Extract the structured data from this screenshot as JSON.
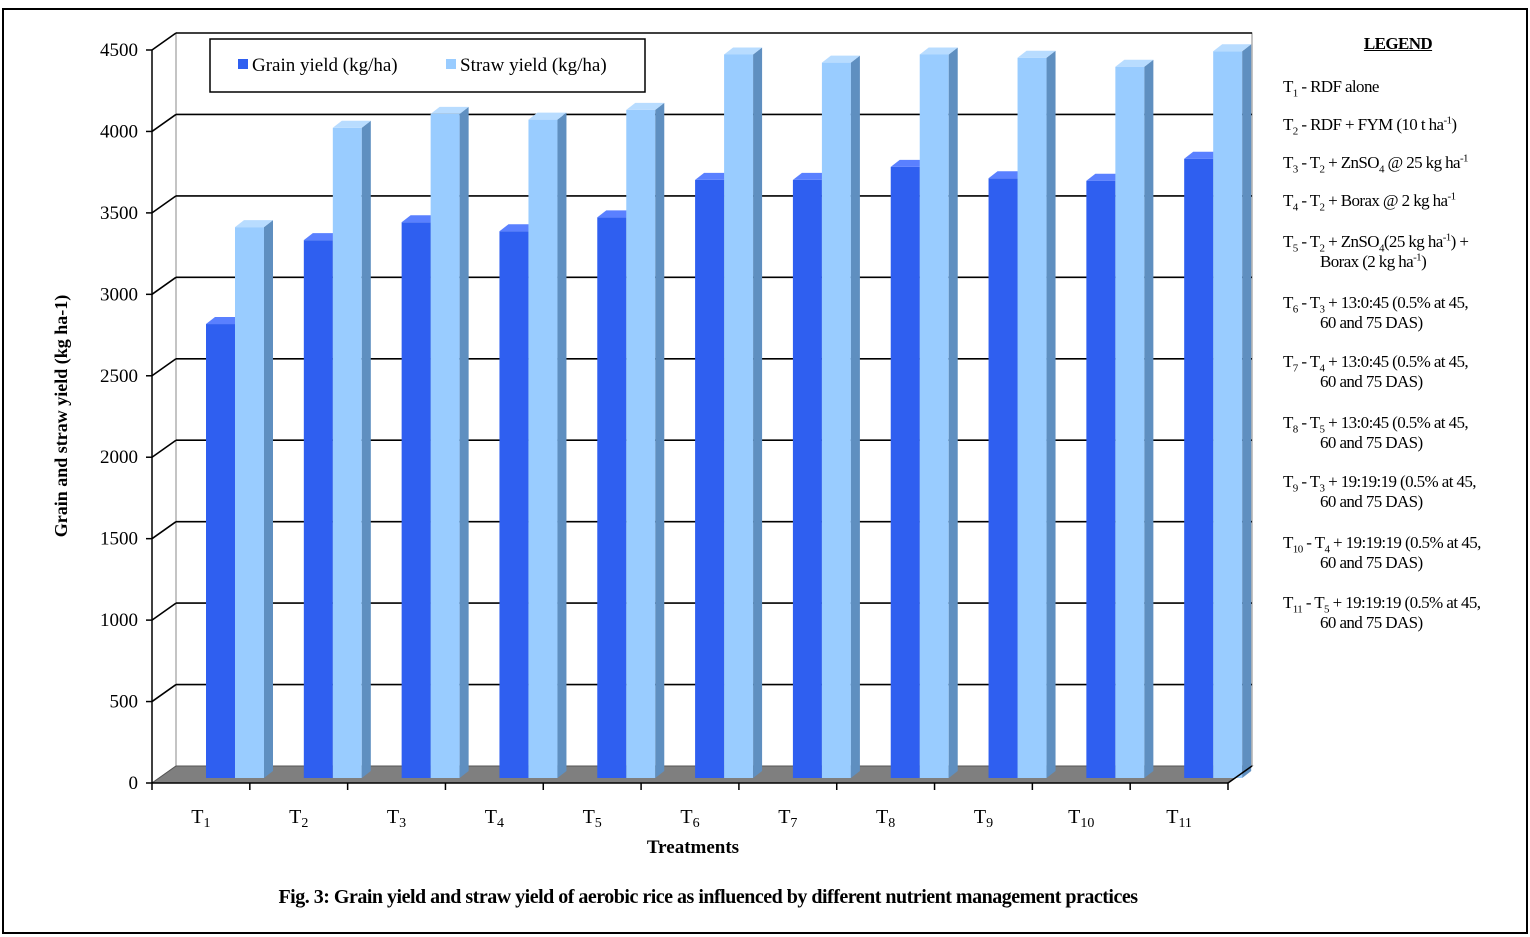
{
  "chart_data": {
    "type": "bar",
    "style": "3d-clustered-column",
    "categories": [
      "T1",
      "T2",
      "T3",
      "T4",
      "T5",
      "T6",
      "T7",
      "T8",
      "T9",
      "T10",
      "T11"
    ],
    "series": [
      {
        "name": "Grain yield (kg/ha)",
        "color": "#2f5ff0",
        "values": [
          2750,
          3265,
          3375,
          3320,
          3405,
          3635,
          3635,
          3715,
          3645,
          3630,
          3765
        ]
      },
      {
        "name": "Straw yield (kg/ha)",
        "color": "#99ccff",
        "values": [
          3345,
          3955,
          4040,
          4005,
          4065,
          4405,
          4355,
          4405,
          4385,
          4330,
          4425
        ]
      }
    ],
    "xlabel": "Treatments",
    "ylabel": "Grain and straw yield (kg ha-1)",
    "ylim": [
      0,
      4500
    ],
    "yticks": [
      0,
      500,
      1000,
      1500,
      2000,
      2500,
      3000,
      3500,
      4000,
      4500
    ],
    "grid": true,
    "legend_position": "top-left",
    "title": "Fig. 3: Grain yield and straw yield of aerobic rice as influenced by different nutrient management practices"
  },
  "treatment_legend": {
    "heading": "LEGEND",
    "items": [
      "T1 - RDF alone",
      "T2 - RDF + FYM (10 t ha-1)",
      "T3 - T2 + ZnSO4 @ 25 kg ha-1",
      "T4 - T2 + Borax @ 2 kg ha-1",
      "T5 - T2 + ZnSO4(25 kg ha-1) + Borax (2 kg ha-1)",
      "T6 - T3 + 13:0:45 (0.5% at 45, 60 and 75 DAS)",
      "T7 - T4 + 13:0:45 (0.5% at 45, 60 and 75 DAS)",
      "T8 - T5 + 13:0:45 (0.5% at 45, 60 and 75 DAS)",
      "T9 - T3 + 19:19:19 (0.5% at 45, 60 and 75 DAS)",
      "T10 - T4 + 19:19:19 (0.5% at 45, 60 and 75 DAS)",
      "T11 - T5 + 19:19:19 (0.5% at 45, 60 and 75 DAS)"
    ]
  }
}
